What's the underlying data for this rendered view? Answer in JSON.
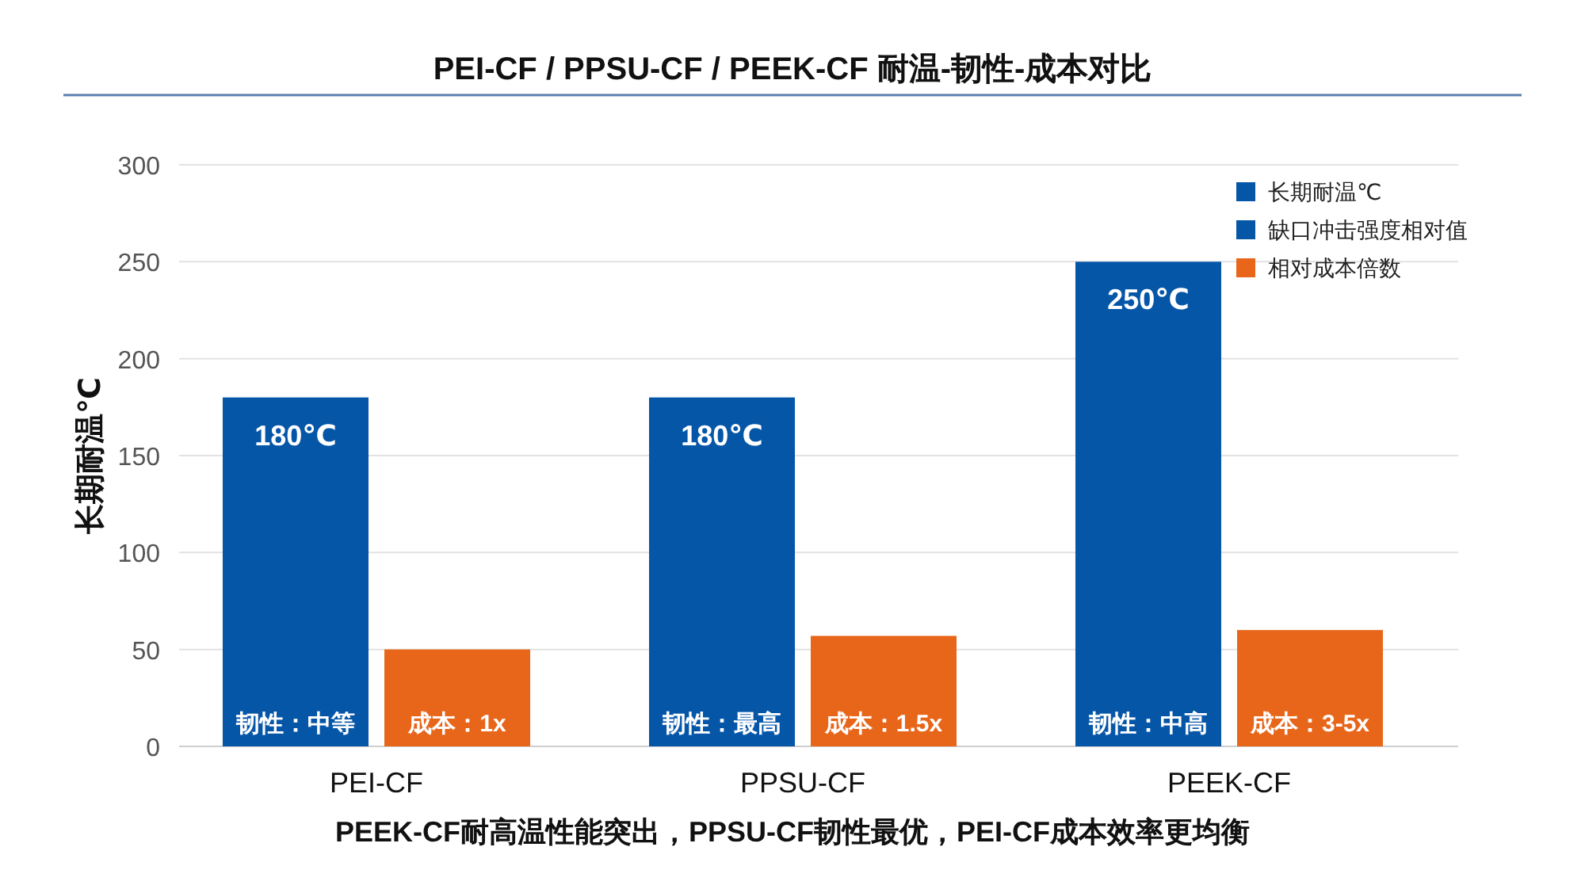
{
  "chart_data": {
    "type": "bar",
    "title": "PEI-CF / PPSU-CF / PEEK-CF 耐温-韧性-成本对比",
    "ylabel": "长期耐温℃",
    "categories": [
      "PEI-CF",
      "PPSU-CF",
      "PEEK-CF"
    ],
    "series": [
      {
        "name": "长期耐温℃",
        "color": "#0656a8",
        "values": [
          180,
          180,
          250
        ],
        "value_labels": [
          "180℃",
          "180℃",
          "250℃"
        ]
      },
      {
        "name": "缺口冲击强度相对值",
        "color": "#0656a8",
        "values": [
          null,
          null,
          null
        ]
      },
      {
        "name": "相对成本倍数",
        "color": "#e8661a",
        "values": [
          50,
          57,
          60
        ]
      }
    ],
    "ylim": [
      0,
      300
    ],
    "yticks": [
      0,
      50,
      100,
      150,
      200,
      250,
      300
    ],
    "grid": "y",
    "legend": "top right",
    "annotations": [
      {
        "text": "韧性：中等",
        "x": "PEI-CF",
        "y": 12
      },
      {
        "text": "韧性：最高",
        "x": "PPSU-CF",
        "y": 12
      },
      {
        "text": "韧性：中高",
        "x": "PEEK-CF",
        "y": 12
      },
      {
        "text": "成本：1x",
        "x": "PEI-CF",
        "y": 12
      },
      {
        "text": "成本：1.5x",
        "x": "PPSU-CF",
        "y": 12
      },
      {
        "text": "成本：3-5x",
        "x": "PEEK-CF",
        "y": 12
      },
      "PEEK-CF耐高温性能突出，PPSU-CF韧性最优，PEI-CF成本效率更均衡"
    ]
  }
}
